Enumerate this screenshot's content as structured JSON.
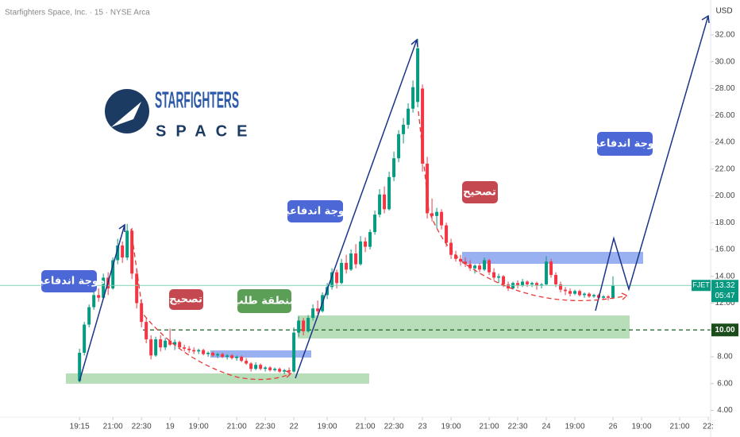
{
  "chart_data": {
    "type": "candlestick",
    "title": "Starfighters Space, Inc. · 15 · NYSE Arca",
    "currency": "USD",
    "ticker": "FJET",
    "countdown": "05:47",
    "logo": {
      "name": "STARFIGHTERS",
      "sub": "SPACE"
    },
    "annotations": [
      "موجة اندفاعية",
      "تصحيح",
      "منطقة طلب",
      "موجة اندفاعية",
      "تصحيح",
      "موجة اندفاعية"
    ],
    "colors": {
      "up": "#089981",
      "down": "#f23645",
      "last": "#7fd3b4"
    },
    "level": {
      "value": 10,
      "label": "10.00"
    },
    "xlim": [
      -16.7,
      132.5
    ],
    "ylim": [
      3.5,
      34.6
    ],
    "xticks": [
      {
        "value": 0,
        "label": "19:15"
      },
      {
        "value": 7,
        "label": "21:00"
      },
      {
        "value": 13,
        "label": "22:30"
      },
      {
        "value": 19,
        "label": "19"
      },
      {
        "value": 25,
        "label": "19:00"
      },
      {
        "value": 33,
        "label": "21:00"
      },
      {
        "value": 39,
        "label": "22:30"
      },
      {
        "value": 45,
        "label": "22"
      },
      {
        "value": 52,
        "label": "19:00"
      },
      {
        "value": 60,
        "label": "21:00"
      },
      {
        "value": 66,
        "label": "22:30"
      },
      {
        "value": 72,
        "label": "23"
      },
      {
        "value": 78,
        "label": "19:00"
      },
      {
        "value": 86,
        "label": "21:00"
      },
      {
        "value": 92,
        "label": "22:30"
      },
      {
        "value": 98,
        "label": "24"
      },
      {
        "value": 104,
        "label": "19:00"
      },
      {
        "value": 112,
        "label": "26"
      },
      {
        "value": 118,
        "label": "19:00"
      },
      {
        "value": 126,
        "label": "21:00"
      },
      {
        "value": 132,
        "label": "22:"
      }
    ],
    "yticks": [
      {
        "value": 4,
        "label": "4.00"
      },
      {
        "value": 6,
        "label": "6.00"
      },
      {
        "value": 8,
        "label": "8.00"
      },
      {
        "value": 10,
        "label": "10.00"
      },
      {
        "value": 12,
        "label": "12.00"
      },
      {
        "value": 14,
        "label": "14.00"
      },
      {
        "value": 16,
        "label": "16.00"
      },
      {
        "value": 18,
        "label": "18.00"
      },
      {
        "value": 20,
        "label": "20.00"
      },
      {
        "value": 22,
        "label": "22.00"
      },
      {
        "value": 24,
        "label": "24.00"
      },
      {
        "value": 26,
        "label": "26.00"
      },
      {
        "value": 28,
        "label": "28.00"
      },
      {
        "value": 30,
        "label": "30.00"
      },
      {
        "value": 32,
        "label": "32.00"
      }
    ],
    "candles": [
      [
        6.2,
        8.6,
        6.1,
        8.3
      ],
      [
        8.3,
        10.6,
        8.1,
        10.4
      ],
      [
        10.4,
        11.9,
        10.2,
        11.7
      ],
      [
        11.7,
        13.4,
        11.5,
        12.6
      ],
      [
        12.6,
        13.1,
        12.1,
        12.4
      ],
      [
        12.4,
        14.2,
        12.3,
        13.9
      ],
      [
        13.9,
        14.3,
        12.6,
        13.1
      ],
      [
        13.1,
        15.4,
        13.0,
        15.2
      ],
      [
        15.2,
        16.8,
        14.9,
        16.3
      ],
      [
        16.3,
        16.6,
        15.0,
        15.4
      ],
      [
        15.4,
        17.9,
        15.2,
        17.4
      ],
      [
        17.4,
        17.6,
        13.8,
        14.2
      ],
      [
        14.2,
        14.5,
        11.6,
        12.0
      ],
      [
        12.0,
        12.3,
        10.2,
        10.6
      ],
      [
        10.6,
        10.9,
        9.0,
        9.3
      ],
      [
        9.3,
        9.6,
        7.8,
        8.1
      ],
      [
        8.1,
        9.5,
        8.0,
        9.3
      ],
      [
        9.3,
        9.6,
        8.4,
        8.7
      ],
      [
        8.7,
        9.4,
        8.5,
        9.2
      ],
      [
        9.2,
        10.1,
        8.8,
        8.9
      ],
      [
        8.9,
        9.3,
        8.5,
        9.1
      ],
      [
        9.1,
        9.2,
        8.6,
        8.7
      ],
      [
        8.7,
        8.9,
        8.4,
        8.6
      ],
      [
        8.6,
        8.8,
        8.3,
        8.5
      ],
      [
        8.5,
        8.7,
        8.2,
        8.4
      ],
      [
        8.4,
        8.6,
        8.2,
        8.5
      ],
      [
        8.5,
        8.6,
        8.1,
        8.2
      ],
      [
        8.2,
        8.4,
        8.0,
        8.3
      ],
      [
        8.3,
        8.4,
        8.0,
        8.1
      ],
      [
        8.1,
        8.3,
        7.9,
        8.2
      ],
      [
        8.2,
        8.3,
        7.9,
        8.0
      ],
      [
        8.0,
        8.2,
        7.8,
        8.1
      ],
      [
        8.1,
        8.2,
        7.8,
        7.9
      ],
      [
        7.9,
        8.1,
        7.7,
        8.0
      ],
      [
        8.0,
        8.1,
        7.6,
        7.7
      ],
      [
        7.7,
        7.9,
        7.4,
        7.5
      ],
      [
        7.5,
        7.6,
        6.9,
        7.1
      ],
      [
        7.1,
        7.6,
        7.0,
        7.4
      ],
      [
        7.4,
        7.5,
        7.0,
        7.1
      ],
      [
        7.1,
        7.3,
        6.9,
        7.2
      ],
      [
        7.2,
        7.3,
        6.9,
        7.0
      ],
      [
        7.0,
        7.2,
        6.9,
        7.1
      ],
      [
        7.1,
        7.2,
        6.8,
        6.9
      ],
      [
        6.9,
        7.1,
        6.7,
        7.0
      ],
      [
        7.0,
        7.2,
        6.6,
        6.9
      ],
      [
        6.9,
        10.2,
        6.8,
        9.8
      ],
      [
        9.8,
        11.0,
        9.5,
        10.7
      ],
      [
        10.7,
        10.9,
        9.6,
        9.9
      ],
      [
        9.9,
        11.1,
        9.8,
        10.9
      ],
      [
        10.9,
        11.9,
        10.7,
        11.6
      ],
      [
        11.6,
        12.2,
        11.2,
        11.4
      ],
      [
        11.4,
        12.8,
        11.3,
        12.6
      ],
      [
        12.6,
        13.5,
        12.3,
        13.2
      ],
      [
        13.2,
        14.6,
        13.0,
        14.3
      ],
      [
        14.3,
        14.5,
        13.1,
        13.5
      ],
      [
        13.5,
        15.3,
        13.4,
        15.0
      ],
      [
        15.0,
        15.6,
        14.2,
        14.5
      ],
      [
        14.5,
        16.0,
        14.4,
        15.7
      ],
      [
        15.7,
        16.4,
        14.6,
        14.9
      ],
      [
        14.9,
        17.0,
        14.8,
        16.6
      ],
      [
        16.6,
        16.9,
        15.8,
        16.2
      ],
      [
        16.2,
        17.5,
        16.0,
        17.3
      ],
      [
        17.3,
        18.9,
        17.1,
        18.6
      ],
      [
        18.6,
        20.5,
        18.4,
        20.1
      ],
      [
        20.1,
        20.7,
        18.7,
        19.0
      ],
      [
        19.0,
        21.8,
        18.9,
        21.4
      ],
      [
        21.4,
        23.3,
        21.1,
        22.8
      ],
      [
        22.8,
        24.9,
        22.5,
        24.6
      ],
      [
        24.6,
        25.8,
        23.9,
        25.3
      ],
      [
        25.3,
        26.9,
        25.0,
        26.5
      ],
      [
        26.5,
        28.6,
        26.2,
        28.1
      ],
      [
        27.0,
        31.7,
        26.6,
        31.0
      ],
      [
        28.0,
        28.3,
        21.8,
        22.4
      ],
      [
        22.4,
        22.9,
        18.3,
        18.7
      ],
      [
        18.7,
        19.8,
        18.1,
        18.5
      ],
      [
        18.5,
        19.1,
        17.6,
        18.8
      ],
      [
        18.8,
        19.0,
        17.5,
        17.8
      ],
      [
        17.8,
        18.0,
        16.2,
        16.5
      ],
      [
        16.5,
        16.8,
        15.3,
        15.6
      ],
      [
        15.6,
        15.9,
        15.1,
        15.3
      ],
      [
        15.3,
        15.6,
        14.8,
        15.1
      ],
      [
        15.1,
        15.4,
        14.7,
        14.9
      ],
      [
        14.9,
        15.2,
        14.4,
        14.6
      ],
      [
        14.6,
        14.9,
        14.2,
        14.8
      ],
      [
        14.8,
        15.0,
        14.3,
        14.5
      ],
      [
        14.5,
        15.4,
        14.4,
        15.2
      ],
      [
        15.2,
        15.3,
        14.1,
        14.3
      ],
      [
        14.3,
        14.6,
        13.7,
        13.9
      ],
      [
        13.9,
        14.2,
        13.5,
        14.0
      ],
      [
        14.0,
        14.1,
        13.2,
        13.4
      ],
      [
        13.4,
        13.6,
        12.9,
        13.1
      ],
      [
        13.1,
        13.6,
        13.0,
        13.5
      ],
      [
        13.5,
        13.7,
        13.1,
        13.3
      ],
      [
        13.3,
        13.8,
        13.2,
        13.6
      ],
      [
        13.6,
        13.7,
        13.2,
        13.4
      ],
      [
        13.4,
        13.6,
        13.2,
        13.5
      ],
      [
        13.5,
        13.6,
        13.0,
        13.3
      ],
      [
        13.3,
        13.5,
        13.1,
        13.4
      ],
      [
        13.4,
        15.5,
        13.3,
        15.1
      ],
      [
        15.1,
        15.3,
        13.9,
        14.1
      ],
      [
        14.1,
        14.3,
        13.2,
        13.4
      ],
      [
        13.4,
        13.6,
        12.8,
        13.0
      ],
      [
        13.0,
        13.2,
        12.6,
        12.9
      ],
      [
        12.9,
        13.1,
        12.5,
        12.7
      ],
      [
        12.7,
        13.0,
        12.6,
        12.9
      ],
      [
        12.9,
        13.0,
        12.5,
        12.6
      ],
      [
        12.6,
        12.8,
        12.4,
        12.7
      ],
      [
        12.7,
        12.8,
        12.4,
        12.5
      ],
      [
        12.5,
        12.7,
        12.4,
        12.6
      ],
      [
        12.6,
        12.7,
        12.3,
        12.4
      ],
      [
        12.4,
        12.6,
        12.3,
        12.5
      ],
      [
        12.5,
        12.6,
        12.2,
        12.4
      ],
      [
        12.4,
        14.0,
        12.3,
        13.32
      ]
    ]
  }
}
